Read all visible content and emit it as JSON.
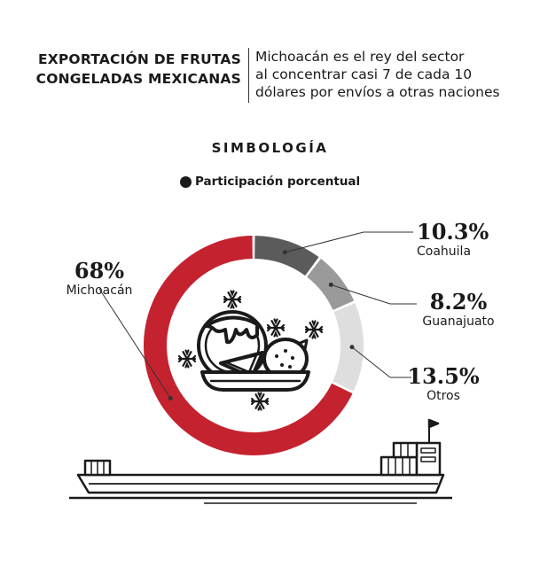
{
  "header": {
    "title_line1": "EXPORTACIÓN DE FRUTAS",
    "title_line2": "CONGELADAS MEXICANAS",
    "subtitle_line1": "Michoacán es el rey del sector",
    "subtitle_line2": "al concentrar casi 7 de cada 10",
    "subtitle_line3": "dólares por envíos a otras naciones"
  },
  "simbologia": "SIMBOLOGÍA",
  "legend": {
    "label": "Participación porcentual",
    "color": "#1a1a1a"
  },
  "chart_data": {
    "type": "pie",
    "title": "EXPORTACIÓN DE FRUTAS CONGELADAS MEXICANAS",
    "subtitle": "Michoacán es el rey del sector al concentrar casi 7 de cada 10 dólares por envíos a otras naciones",
    "legend": [
      "Participación porcentual"
    ],
    "slices": [
      {
        "label": "Coahuila",
        "value": 10.3,
        "value_label": "10.3%",
        "color": "#5b5b5b"
      },
      {
        "label": "Guanajuato",
        "value": 8.2,
        "value_label": "8.2%",
        "color": "#9a9a9a"
      },
      {
        "label": "Otros",
        "value": 13.5,
        "value_label": "13.5%",
        "color": "#dedede"
      },
      {
        "label": "Michoacán",
        "value": 68,
        "value_label": "68%",
        "color": "#c4222f"
      }
    ]
  },
  "icons": [
    "fruit-bowl-icon",
    "snowflake-icon",
    "cargo-ship-icon"
  ],
  "colors": {
    "accent_red": "#c4222f",
    "text": "#1a1a1a",
    "leader_line": "#333333"
  }
}
